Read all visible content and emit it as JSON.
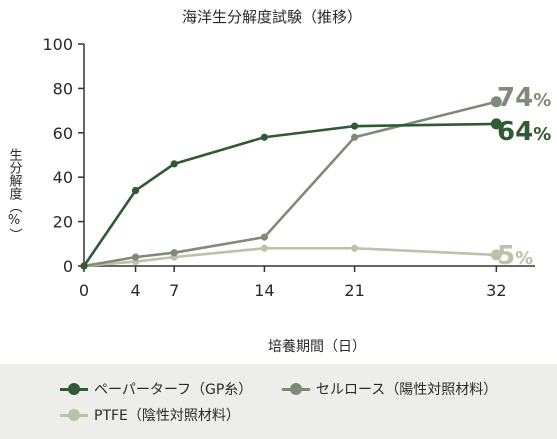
{
  "chart_data": {
    "type": "line",
    "title": "海洋生分解度試験（推移）",
    "xlabel": "培養期間（日）",
    "ylabel": "生分解度（%）",
    "x": [
      0,
      4,
      7,
      14,
      21,
      32
    ],
    "x_ticks": [
      "0",
      "4",
      "7",
      "14",
      "21",
      "32"
    ],
    "xlim": [
      0,
      35
    ],
    "y_ticks": [
      "0",
      "20",
      "40",
      "60",
      "80",
      "100"
    ],
    "ylim": [
      0,
      100
    ],
    "grid": false,
    "legend_position": "bottom",
    "series": [
      {
        "name": "ペーパーターフ（GP糸）",
        "values": [
          0,
          34,
          46,
          58,
          63,
          64
        ],
        "color": "#2f5a34",
        "end_label": "64",
        "end_unit": "%"
      },
      {
        "name": "セルロース（陽性対照材料）",
        "values": [
          0,
          4,
          6,
          13,
          58,
          74
        ],
        "color": "#7f8b77",
        "end_label": "74",
        "end_unit": "%"
      },
      {
        "name": "PTFE（陰性対照材料）",
        "values": [
          0,
          2,
          4,
          8,
          8,
          5
        ],
        "color": "#b9c3a8",
        "end_label": "5",
        "end_unit": "%"
      }
    ]
  }
}
